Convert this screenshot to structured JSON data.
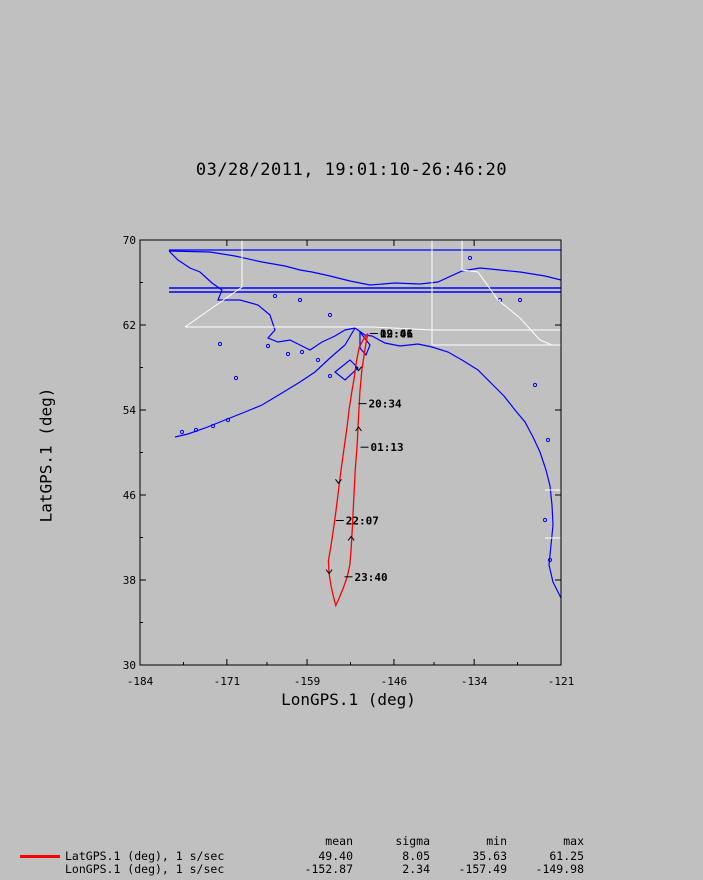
{
  "title": "03/28/2011, 19:01:10-26:46:20",
  "colors": {
    "background": "#c0c0c0",
    "coast": "#0000ff",
    "border": "#ffffff",
    "track": "#ff0000",
    "axes": "#000000"
  },
  "chart_data": {
    "type": "line",
    "xlabel": "LonGPS.1 (deg)",
    "ylabel": "LatGPS.1 (deg)",
    "xlim": [
      -184,
      -121
    ],
    "ylim": [
      30,
      70
    ],
    "x_ticks": [
      "-184",
      "-171",
      "-159",
      "-146",
      "-134",
      "-121"
    ],
    "y_ticks": [
      "30",
      "38",
      "46",
      "54",
      "62",
      "70"
    ],
    "series": [
      {
        "name": "LatGPS.1 (deg), 1 s/sec",
        "color": "#ff0000",
        "points": [
          [
            -149.9,
            61.2
          ],
          [
            -150.6,
            60.6
          ],
          [
            -151.2,
            59.9
          ],
          [
            -151.6,
            58.6
          ],
          [
            -151.9,
            57.2
          ],
          [
            -152.3,
            55.7
          ],
          [
            -152.7,
            54.1
          ],
          [
            -153.0,
            52.5
          ],
          [
            -153.4,
            50.7
          ],
          [
            -153.8,
            48.9
          ],
          [
            -154.2,
            46.9
          ],
          [
            -154.6,
            44.9
          ],
          [
            -155.0,
            43.0
          ],
          [
            -155.4,
            41.3
          ],
          [
            -155.8,
            39.8
          ],
          [
            -155.7,
            38.6
          ],
          [
            -155.4,
            37.4
          ],
          [
            -155.0,
            36.3
          ],
          [
            -154.7,
            35.6
          ],
          [
            -154.2,
            36.3
          ],
          [
            -153.6,
            37.2
          ],
          [
            -153.0,
            38.3
          ],
          [
            -152.6,
            39.4
          ],
          [
            -152.4,
            41.0
          ],
          [
            -152.2,
            43.2
          ],
          [
            -152.0,
            45.7
          ],
          [
            -151.8,
            48.3
          ],
          [
            -151.5,
            50.8
          ],
          [
            -151.3,
            53.3
          ],
          [
            -151.1,
            55.7
          ],
          [
            -150.8,
            57.8
          ],
          [
            -150.4,
            59.4
          ],
          [
            -150.1,
            60.6
          ],
          [
            -149.9,
            61.2
          ]
        ]
      }
    ],
    "time_annotations": [
      {
        "label": "20:34",
        "lon": -151.3,
        "lat": 54.6
      },
      {
        "label": "01:13",
        "lon": -151.0,
        "lat": 50.5
      },
      {
        "label": "22:07",
        "lon": -154.7,
        "lat": 43.6
      },
      {
        "label": "23:40",
        "lon": -153.4,
        "lat": 38.3
      },
      {
        "label": "19:01",
        "lon": -149.6,
        "lat": 61.2
      },
      {
        "label": "02:46",
        "lon": -149.6,
        "lat": 61.2
      }
    ],
    "direction_arrows": [
      {
        "lon": -151.3,
        "lat": 57.7,
        "dir": "down"
      },
      {
        "lon": -151.3,
        "lat": 52.4,
        "dir": "up"
      },
      {
        "lon": -154.3,
        "lat": 47.1,
        "dir": "down"
      },
      {
        "lon": -152.4,
        "lat": 42.1,
        "dir": "up"
      },
      {
        "lon": -155.7,
        "lat": 38.6,
        "dir": "down"
      }
    ]
  },
  "legend": {
    "headers": [
      "mean",
      "sigma",
      "min",
      "max"
    ],
    "rows": [
      {
        "name": "LatGPS.1 (deg), 1 s/sec",
        "mean": "49.40",
        "sigma": "8.05",
        "min": "35.63",
        "max": "61.25"
      },
      {
        "name": "LonGPS.1 (deg), 1 s/sec",
        "mean": "-152.87",
        "sigma": "2.34",
        "min": "-157.49",
        "max": "-149.98"
      }
    ]
  }
}
